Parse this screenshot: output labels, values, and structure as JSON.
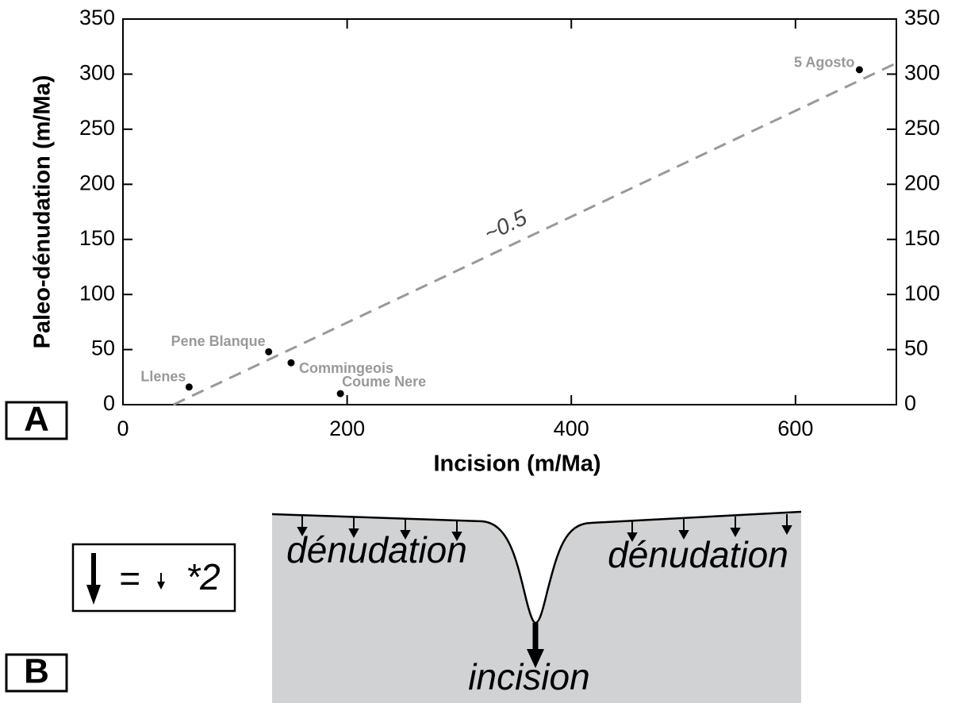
{
  "chart_data": {
    "type": "scatter",
    "xlabel": "Incision (m/Ma)",
    "ylabel": "Paleo-dénudation (m/Ma)",
    "x": [
      59,
      130,
      150,
      194,
      657
    ],
    "values": [
      16,
      48,
      38,
      10,
      304
    ],
    "labels": [
      "Llenes",
      "Pene Blanque",
      "Commingeois",
      "Coume Nere",
      "5 Agosto"
    ],
    "color": "#000000",
    "xlim": [
      0,
      690
    ],
    "xticks": [
      0,
      200,
      400,
      600
    ],
    "ylim": [
      0,
      350
    ],
    "yticks": [
      0,
      50,
      100,
      150,
      200,
      250,
      300,
      350
    ],
    "y2lim": [
      0,
      350
    ],
    "y2ticks": [
      0,
      50,
      100,
      150,
      200,
      250,
      300,
      350
    ],
    "trend": {
      "x": [
        45,
        690
      ],
      "values": [
        0,
        310
      ],
      "label": "~0.5",
      "color": "#999999"
    }
  },
  "panels": [
    "A",
    "B"
  ],
  "diagram": {
    "legend": [
      "=",
      "*2"
    ],
    "left_label": "dénudation",
    "right_label": "dénudation",
    "center_label": "incision"
  }
}
